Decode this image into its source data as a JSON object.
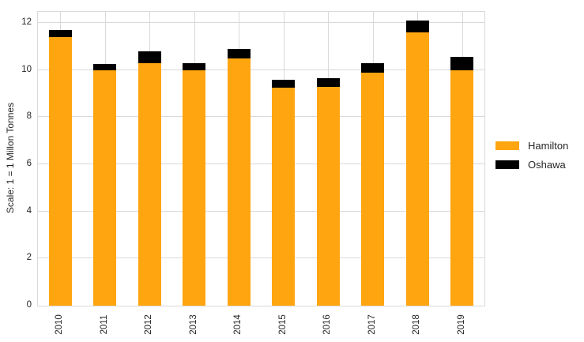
{
  "chart_data": {
    "type": "bar",
    "stacked": true,
    "title": "",
    "categories": [
      "2010",
      "2011",
      "2012",
      "2013",
      "2014",
      "2015",
      "2016",
      "2017",
      "2018",
      "2019"
    ],
    "series": [
      {
        "name": "Hamilton",
        "color": "#FFA510",
        "values": [
          11.4,
          10.0,
          10.3,
          10.0,
          10.5,
          9.25,
          9.3,
          9.9,
          11.6,
          10.0
        ]
      },
      {
        "name": "Oshawa",
        "color": "#000000",
        "values": [
          0.3,
          0.25,
          0.5,
          0.3,
          0.4,
          0.35,
          0.35,
          0.4,
          0.5,
          0.55
        ]
      }
    ],
    "totals": [
      11.7,
      10.25,
      10.8,
      10.3,
      10.9,
      9.6,
      9.65,
      10.3,
      12.1,
      10.55
    ],
    "xlabel": "",
    "ylabel": "Scale: 1 = 1 Millon Tonnes",
    "yticks": [
      0,
      2,
      4,
      6,
      8,
      10,
      12
    ],
    "ylim": [
      0,
      12.47
    ],
    "grid": true,
    "grid_color": "#d9d9d9",
    "background": "#ffffff",
    "text_color": "#262626",
    "legend_position": "right"
  }
}
